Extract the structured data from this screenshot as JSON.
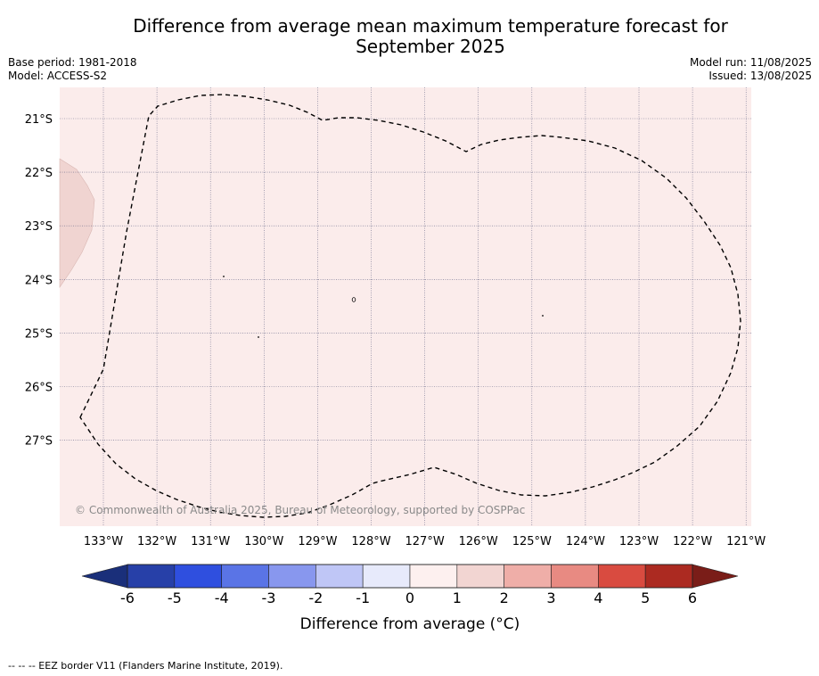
{
  "title": {
    "line1": "Difference from average mean maximum temperature forecast for",
    "line2": "September 2025"
  },
  "meta_left": {
    "base_period": "Base period: 1981-2018",
    "model": "Model: ACCESS-S2"
  },
  "meta_right": {
    "model_run": "Model run: 11/08/2025",
    "issued": "Issued: 13/08/2025"
  },
  "map": {
    "lat_labels": [
      "21°S",
      "22°S",
      "23°S",
      "24°S",
      "25°S",
      "26°S",
      "27°S"
    ],
    "lon_labels": [
      "133°W",
      "132°W",
      "131°W",
      "130°W",
      "129°W",
      "128°W",
      "127°W",
      "126°W",
      "125°W",
      "124°W",
      "123°W",
      "122°W",
      "121°W"
    ],
    "background_color": "#fbeceb",
    "island_color": "#f0d4d1",
    "copyright": "© Commonwealth of Australia 2025, Bureau of Meteorology, supported by COSPPac"
  },
  "colorbar": {
    "ticks": [
      "-6",
      "-5",
      "-4",
      "-3",
      "-2",
      "-1",
      "0",
      "1",
      "2",
      "3",
      "4",
      "5",
      "6"
    ],
    "colors": [
      "#2740a8",
      "#2f4fdf",
      "#5a74e6",
      "#8897ee",
      "#bfc6f6",
      "#e7eafb",
      "#fdf0ef",
      "#f2d5d2",
      "#efaea8",
      "#e88a82",
      "#d94b40",
      "#ac2a21"
    ],
    "low_extend_color": "#1a2f7a",
    "high_extend_color": "#7a1d18",
    "label": "Difference from average (°C)"
  },
  "footnote": "--  --  -- EEZ border V11 (Flanders Marine Institute, 2019)."
}
